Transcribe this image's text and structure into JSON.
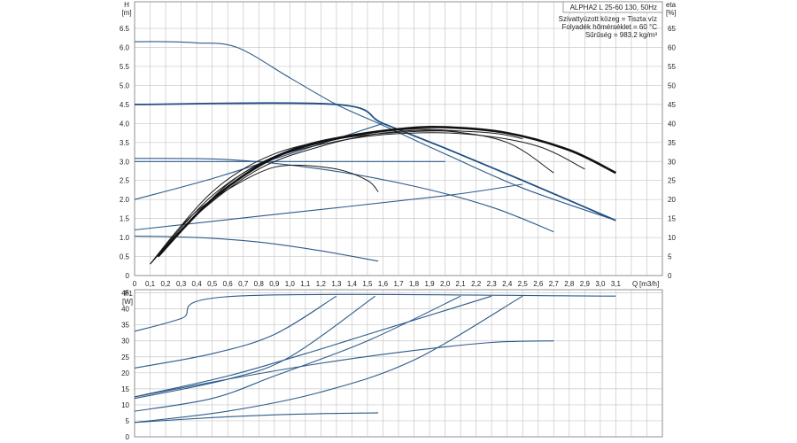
{
  "chart_data": [
    {
      "type": "line",
      "title": "ALPHA2 L 25-60 130, 50Hz",
      "annotations": [
        "Szivattyúzott közeg = Tiszta víz",
        "Folyadék hőmérséklet = 60 °C",
        "Sűrűség = 983.2 kg/m³"
      ],
      "ylabel": "H",
      "yunit": "[m]",
      "y2label": "eta",
      "y2unit": "[%]",
      "xlabel": "Q",
      "xunit": "[m3/h]",
      "xlim": [
        0,
        3.4
      ],
      "ylim": [
        0,
        7.2
      ],
      "y2lim": [
        0,
        72
      ],
      "xticks": [
        "0",
        "0,1",
        "0,2",
        "0,3",
        "0,4",
        "0,5",
        "0,6",
        "0,7",
        "0,8",
        "0,9",
        "1,0",
        "1,1",
        "1,2",
        "1,3",
        "1,4",
        "1,5",
        "1,6",
        "1,7",
        "1,8",
        "1,9",
        "2,0",
        "2,1",
        "2,2",
        "2,3",
        "2,4",
        "2,5",
        "2,6",
        "2,7",
        "2,8",
        "2,9",
        "3,0",
        "3,1"
      ],
      "yticks": [
        "0",
        "0.5",
        "1.0",
        "1.5",
        "2.0",
        "2.5",
        "3.0",
        "3.5",
        "4.0",
        "4.5",
        "5.0",
        "5.5",
        "6.0",
        "6.5"
      ],
      "y2ticks": [
        "0",
        "5",
        "10",
        "15",
        "20",
        "25",
        "30",
        "35",
        "40",
        "45",
        "50",
        "55",
        "60",
        "65"
      ],
      "grid": true,
      "head_curves": [
        {
          "points": [
            [
              0,
              6.15
            ],
            [
              0.2,
              6.15
            ],
            [
              0.4,
              6.12
            ],
            [
              0.66,
              6.0
            ],
            [
              1.0,
              5.2
            ],
            [
              1.3,
              4.5
            ],
            [
              1.6,
              3.95
            ],
            [
              2.0,
              3.2
            ],
            [
              2.5,
              2.3
            ],
            [
              3.1,
              1.45
            ]
          ]
        },
        {
          "points": [
            [
              0,
              4.5
            ],
            [
              1.3,
              4.5
            ],
            [
              1.6,
              4.0
            ],
            [
              2.0,
              3.35
            ],
            [
              2.5,
              2.5
            ],
            [
              3.1,
              1.45
            ]
          ]
        },
        {
          "points": [
            [
              0,
              3.0
            ],
            [
              2.0,
              3.0
            ]
          ]
        },
        {
          "points": [
            [
              0,
              3.08
            ],
            [
              0.6,
              3.05
            ],
            [
              1.2,
              2.8
            ],
            [
              1.8,
              2.35
            ],
            [
              2.3,
              1.8
            ],
            [
              2.7,
              1.15
            ]
          ]
        },
        {
          "points": [
            [
              0,
              1.04
            ],
            [
              0.4,
              1.0
            ],
            [
              0.8,
              0.88
            ],
            [
              1.2,
              0.65
            ],
            [
              1.57,
              0.38
            ]
          ]
        },
        {
          "points": [
            [
              0,
              1.2
            ],
            [
              1.0,
              1.65
            ],
            [
              2.0,
              2.1
            ],
            [
              2.5,
              2.4
            ]
          ]
        },
        {
          "points": [
            [
              0,
              2.0
            ],
            [
              0.5,
              2.55
            ],
            [
              1.0,
              3.2
            ],
            [
              1.6,
              4.0
            ]
          ]
        }
      ],
      "eta_curves": [
        {
          "points": [
            [
              0.1,
              3
            ],
            [
              0.3,
              13
            ],
            [
              0.5,
              20
            ],
            [
              0.8,
              27
            ],
            [
              1.0,
              29
            ],
            [
              1.3,
              28
            ],
            [
              1.5,
              25
            ],
            [
              1.57,
              22
            ]
          ]
        },
        {
          "points": [
            [
              0.1,
              3
            ],
            [
              0.4,
              16
            ],
            [
              0.8,
              28
            ],
            [
              1.2,
              34
            ],
            [
              1.6,
              37.5
            ],
            [
              2.0,
              38
            ],
            [
              2.4,
              35
            ],
            [
              2.7,
              27
            ]
          ]
        },
        {
          "points": [
            [
              0.12,
              4
            ],
            [
              0.5,
              21
            ],
            [
              0.9,
              31
            ],
            [
              1.4,
              36
            ],
            [
              1.8,
              37.5
            ],
            [
              2.2,
              37
            ],
            [
              2.6,
              34
            ],
            [
              2.9,
              28
            ]
          ]
        },
        {
          "points": [
            [
              0.12,
              4
            ],
            [
              0.5,
              22
            ],
            [
              0.9,
              32
            ],
            [
              1.4,
              36.5
            ],
            [
              1.9,
              38
            ],
            [
              2.3,
              37.5
            ],
            [
              2.5,
              36
            ]
          ]
        },
        {
          "points": [
            [
              0.15,
              5
            ],
            [
              0.6,
              24
            ],
            [
              1.0,
              33
            ],
            [
              1.4,
              37
            ],
            [
              1.8,
              38.5
            ],
            [
              2.1,
              38
            ]
          ]
        }
      ],
      "eta_best": {
        "points": [
          [
            0.15,
            5
          ],
          [
            0.5,
            20
          ],
          [
            0.9,
            31
          ],
          [
            1.3,
            36
          ],
          [
            1.7,
            38.5
          ],
          [
            2.0,
            39
          ],
          [
            2.4,
            37.5
          ],
          [
            2.8,
            33
          ],
          [
            3.1,
            27
          ]
        ]
      }
    },
    {
      "type": "line",
      "ylabel": "P1",
      "yunit": "[W]",
      "xlim": [
        0,
        3.4
      ],
      "ylim": [
        0,
        46
      ],
      "yticks": [
        "0",
        "5",
        "10",
        "15",
        "20",
        "25",
        "30",
        "35",
        "40",
        "45"
      ],
      "grid": true,
      "power_curves": [
        {
          "points": [
            [
              0,
              33
            ],
            [
              0.3,
              37
            ],
            [
              0.66,
              44
            ],
            [
              3.1,
              44
            ]
          ]
        },
        {
          "points": [
            [
              0,
              21.5
            ],
            [
              0.5,
              26
            ],
            [
              0.9,
              32
            ],
            [
              1.3,
              44
            ]
          ]
        },
        {
          "points": [
            [
              0,
              12
            ],
            [
              0.6,
              18
            ],
            [
              1.0,
              25
            ],
            [
              1.55,
              44
            ]
          ]
        },
        {
          "points": [
            [
              0,
              8
            ],
            [
              0.5,
              12
            ],
            [
              0.9,
              19
            ],
            [
              1.5,
              30
            ],
            [
              2.1,
              44
            ]
          ]
        },
        {
          "points": [
            [
              0,
              4.5
            ],
            [
              0.6,
              8
            ],
            [
              1.2,
              14
            ],
            [
              1.8,
              24
            ],
            [
              2.5,
              44
            ]
          ]
        },
        {
          "points": [
            [
              0,
              4.5
            ],
            [
              0.5,
              6
            ],
            [
              1.0,
              7
            ],
            [
              1.57,
              7.5
            ]
          ]
        },
        {
          "points": [
            [
              0,
              12.5
            ],
            [
              0.6,
              18
            ],
            [
              1.2,
              23
            ],
            [
              1.8,
              27
            ],
            [
              2.3,
              29.5
            ],
            [
              2.7,
              30
            ]
          ]
        },
        {
          "points": [
            [
              0,
              12.5
            ],
            [
              0.6,
              19
            ],
            [
              1.1,
              26
            ],
            [
              1.5,
              32
            ],
            [
              1.9,
              38
            ],
            [
              2.3,
              44
            ]
          ]
        }
      ]
    }
  ],
  "colors": {
    "head": "#2d5b8a",
    "eta": "#1a1a1a",
    "grid": "#c8c8c8"
  }
}
